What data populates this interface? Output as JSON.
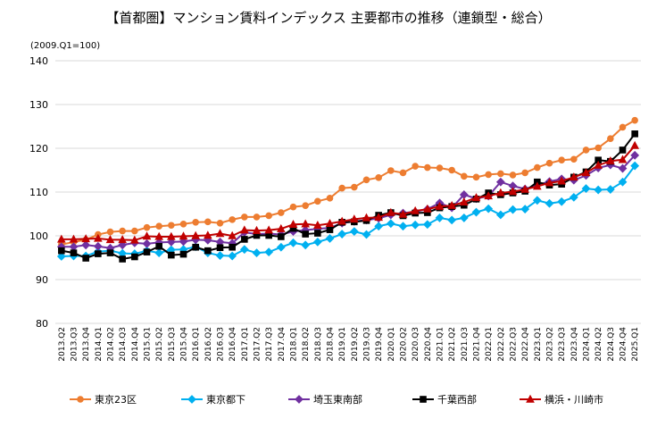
{
  "chart_data": {
    "type": "line",
    "title": "【首都圏】マンション賃料インデックス 主要都市の推移（連鎖型・総合）",
    "unit_note": "(2009.Q1=100)",
    "ylim": [
      80,
      140
    ],
    "yticks": [
      80,
      90,
      100,
      110,
      120,
      130,
      140
    ],
    "grid": true,
    "legend_position": "bottom",
    "categories": [
      "2013.Q2",
      "2013.Q3",
      "2013.Q4",
      "2014.Q1",
      "2014.Q2",
      "2014.Q3",
      "2014.Q4",
      "2015.Q1",
      "2015.Q2",
      "2015.Q3",
      "2015.Q4",
      "2016.Q1",
      "2016.Q2",
      "2016.Q3",
      "2016.Q4",
      "2017.Q1",
      "2017.Q2",
      "2017.Q3",
      "2017.Q4",
      "2018.Q1",
      "2018.Q2",
      "2018.Q3",
      "2018.Q4",
      "2019.Q1",
      "2019.Q2",
      "2019.Q3",
      "2019.Q4",
      "2020.Q1",
      "2020.Q2",
      "2020.Q3",
      "2020.Q4",
      "2021.Q1",
      "2021.Q2",
      "2021.Q3",
      "2021.Q4",
      "2022.Q1",
      "2022.Q2",
      "2022.Q3",
      "2022.Q4",
      "2023.Q1",
      "2023.Q2",
      "2023.Q3",
      "2023.Q4",
      "2024.Q1",
      "2024.Q2",
      "2024.Q3",
      "2024.Q4",
      "2025.Q1"
    ],
    "series": [
      {
        "name": "東京23区",
        "color": "#ED7D31",
        "marker": "circle",
        "values": [
          98.0,
          98.6,
          99.1,
          100.3,
          100.9,
          101.1,
          101.1,
          101.9,
          102.2,
          102.4,
          102.7,
          103.1,
          103.2,
          102.9,
          103.7,
          104.3,
          104.3,
          104.6,
          105.3,
          106.6,
          106.9,
          107.9,
          108.6,
          110.9,
          111.1,
          112.8,
          113.3,
          114.9,
          114.4,
          115.9,
          115.6,
          115.5,
          115.0,
          113.6,
          113.4,
          114.0,
          114.2,
          113.9,
          114.4,
          115.6,
          116.6,
          117.3,
          117.5,
          119.6,
          120.1,
          122.2,
          124.8,
          126.4
        ]
      },
      {
        "name": "東京都下",
        "color": "#00B0F0",
        "marker": "diamond",
        "values": [
          95.3,
          95.4,
          95.4,
          96.4,
          96.6,
          96.0,
          95.9,
          96.6,
          96.1,
          96.8,
          96.9,
          97.5,
          96.1,
          95.5,
          95.4,
          96.9,
          96.1,
          96.3,
          97.4,
          98.4,
          97.9,
          98.6,
          99.4,
          100.4,
          101.0,
          100.3,
          102.2,
          102.8,
          102.2,
          102.5,
          102.6,
          104.1,
          103.6,
          104.1,
          105.4,
          106.2,
          104.8,
          106.0,
          106.1,
          108.1,
          107.4,
          107.8,
          108.8,
          110.8,
          110.5,
          110.6,
          112.3,
          116.0
        ]
      },
      {
        "name": "埼玉東南部",
        "color": "#7030A0",
        "marker": "diamond",
        "values": [
          97.5,
          97.5,
          97.9,
          97.6,
          97.2,
          97.9,
          98.4,
          98.2,
          98.5,
          98.6,
          98.7,
          99.1,
          99.0,
          98.6,
          98.3,
          100.8,
          100.4,
          100.5,
          100.3,
          101.0,
          101.3,
          101.6,
          101.8,
          102.9,
          103.3,
          103.6,
          104.0,
          104.8,
          105.2,
          105.5,
          106.1,
          107.5,
          106.4,
          109.4,
          108.5,
          109.1,
          112.3,
          111.4,
          110.7,
          111.6,
          112.4,
          113.0,
          112.7,
          113.8,
          115.5,
          116.2,
          115.4,
          118.4
        ]
      },
      {
        "name": "千葉西部",
        "color": "#000000",
        "marker": "square",
        "values": [
          96.6,
          96.1,
          94.9,
          95.9,
          96.1,
          94.7,
          95.2,
          96.3,
          97.6,
          95.6,
          95.8,
          97.4,
          96.6,
          97.3,
          97.4,
          99.2,
          100.1,
          100.1,
          99.8,
          101.7,
          100.4,
          100.6,
          101.4,
          103.1,
          103.2,
          103.5,
          104.7,
          105.3,
          104.6,
          105.2,
          105.3,
          106.4,
          106.7,
          107.0,
          108.4,
          109.8,
          109.4,
          109.8,
          110.2,
          112.3,
          111.6,
          111.8,
          113.4,
          114.6,
          117.3,
          117.0,
          119.6,
          123.3
        ]
      },
      {
        "name": "横浜・川崎市",
        "color": "#C00000",
        "marker": "triangle",
        "values": [
          99.2,
          99.2,
          99.3,
          99.4,
          99.1,
          99.1,
          99.0,
          99.9,
          99.8,
          99.8,
          99.9,
          100.0,
          100.1,
          100.5,
          100.0,
          101.3,
          101.2,
          101.3,
          101.6,
          102.6,
          102.7,
          102.4,
          102.8,
          103.3,
          103.8,
          104.1,
          104.2,
          105.3,
          104.9,
          105.7,
          106.1,
          106.7,
          106.9,
          107.7,
          108.7,
          109.1,
          109.8,
          110.1,
          110.6,
          111.3,
          112.1,
          112.5,
          113.4,
          114.4,
          116.1,
          117.1,
          117.4,
          120.6
        ]
      }
    ]
  }
}
